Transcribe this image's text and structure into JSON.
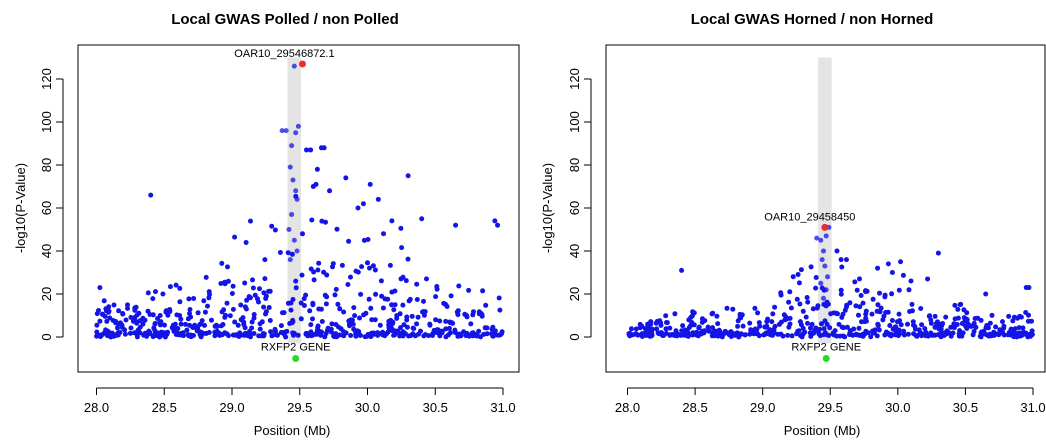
{
  "chart_data": [
    {
      "type": "scatter",
      "title": "Local GWAS Polled / non Polled",
      "xlabel": "Position (Mb)",
      "ylabel": "-log10(P-Value)",
      "xlim": [
        27.95,
        31.05
      ],
      "ylim": [
        -14,
        133
      ],
      "x_ticks": [
        28.0,
        28.5,
        29.0,
        29.5,
        30.0,
        30.5,
        31.0
      ],
      "x_tick_labels": [
        "28.0",
        "28.5",
        "29.0",
        "29.5",
        "30.0",
        "30.5",
        "31.0"
      ],
      "y_ticks": [
        0,
        20,
        40,
        60,
        80,
        100,
        120
      ],
      "y_tick_labels": [
        "0",
        "20",
        "40",
        "60",
        "80",
        "100",
        "120"
      ],
      "grid": false,
      "highlight_region": {
        "x": [
          29.41,
          29.51
        ],
        "y": [
          -3,
          130
        ]
      },
      "point_color": "#1414e6",
      "top_snp": {
        "label": "OAR10_29546872.1",
        "x": 29.52,
        "y": 127,
        "color": "#ee2b2b"
      },
      "gene": {
        "label": "RXFP2 GENE",
        "x": 29.47,
        "y": -10,
        "color": "#22dd22"
      },
      "points_seed": 7,
      "points_count": 620,
      "highlighted_points": [
        {
          "x": 29.37,
          "y": 96
        },
        {
          "x": 29.4,
          "y": 96
        },
        {
          "x": 29.46,
          "y": 126
        },
        {
          "x": 29.47,
          "y": 95
        },
        {
          "x": 29.49,
          "y": 98
        },
        {
          "x": 29.44,
          "y": 89
        },
        {
          "x": 29.43,
          "y": 79
        },
        {
          "x": 29.45,
          "y": 73
        },
        {
          "x": 29.48,
          "y": 64
        },
        {
          "x": 29.47,
          "y": 68
        },
        {
          "x": 29.44,
          "y": 57
        },
        {
          "x": 29.42,
          "y": 50
        },
        {
          "x": 29.46,
          "y": 45
        },
        {
          "x": 29.48,
          "y": 40
        },
        {
          "x": 29.43,
          "y": 36
        }
      ],
      "notable_points": [
        {
          "x": 28.4,
          "y": 66
        },
        {
          "x": 29.55,
          "y": 87
        },
        {
          "x": 29.58,
          "y": 87
        },
        {
          "x": 29.66,
          "y": 88
        },
        {
          "x": 29.68,
          "y": 88
        },
        {
          "x": 29.63,
          "y": 78
        },
        {
          "x": 29.6,
          "y": 70
        },
        {
          "x": 29.62,
          "y": 71
        },
        {
          "x": 29.72,
          "y": 68
        },
        {
          "x": 29.84,
          "y": 74
        },
        {
          "x": 30.02,
          "y": 71
        },
        {
          "x": 30.3,
          "y": 75
        },
        {
          "x": 29.97,
          "y": 62
        },
        {
          "x": 30.08,
          "y": 64
        },
        {
          "x": 29.93,
          "y": 60
        },
        {
          "x": 30.4,
          "y": 55
        },
        {
          "x": 30.94,
          "y": 54
        },
        {
          "x": 30.96,
          "y": 52
        },
        {
          "x": 30.65,
          "y": 52
        },
        {
          "x": 30.18,
          "y": 54
        }
      ]
    },
    {
      "type": "scatter",
      "title": "Local GWAS Horned / non Horned",
      "xlabel": "Position (Mb)",
      "ylabel": "-log10(P-Value)",
      "xlim": [
        27.95,
        31.05
      ],
      "ylim": [
        -14,
        133
      ],
      "x_ticks": [
        28.0,
        28.5,
        29.0,
        29.5,
        30.0,
        30.5,
        31.0
      ],
      "x_tick_labels": [
        "28.0",
        "28.5",
        "29.0",
        "29.5",
        "30.0",
        "30.5",
        "31.0"
      ],
      "y_ticks": [
        0,
        20,
        40,
        60,
        80,
        100,
        120
      ],
      "y_tick_labels": [
        "0",
        "20",
        "40",
        "60",
        "80",
        "100",
        "120"
      ],
      "grid": false,
      "highlight_region": {
        "x": [
          29.41,
          29.51
        ],
        "y": [
          -3,
          130
        ]
      },
      "point_color": "#1414e6",
      "top_snp": {
        "label": "OAR10_29458450",
        "x": 29.46,
        "y": 51,
        "color": "#ee2b2b"
      },
      "gene": {
        "label": "RXFP2 GENE",
        "x": 29.47,
        "y": -10,
        "color": "#22dd22"
      },
      "points_seed": 13,
      "points_count": 560,
      "highlighted_points": [
        {
          "x": 29.4,
          "y": 46
        },
        {
          "x": 29.43,
          "y": 45
        },
        {
          "x": 29.49,
          "y": 51
        },
        {
          "x": 29.47,
          "y": 47
        },
        {
          "x": 29.45,
          "y": 40
        },
        {
          "x": 29.44,
          "y": 36
        },
        {
          "x": 29.46,
          "y": 33
        },
        {
          "x": 29.48,
          "y": 28
        },
        {
          "x": 29.43,
          "y": 25
        },
        {
          "x": 29.47,
          "y": 22
        },
        {
          "x": 29.45,
          "y": 18
        }
      ],
      "notable_points": [
        {
          "x": 28.4,
          "y": 31
        },
        {
          "x": 29.58,
          "y": 36
        },
        {
          "x": 29.62,
          "y": 36
        },
        {
          "x": 29.55,
          "y": 40
        },
        {
          "x": 30.3,
          "y": 39
        },
        {
          "x": 29.93,
          "y": 34
        },
        {
          "x": 30.02,
          "y": 35
        },
        {
          "x": 29.85,
          "y": 32
        },
        {
          "x": 30.95,
          "y": 23
        },
        {
          "x": 30.97,
          "y": 23
        },
        {
          "x": 30.22,
          "y": 27
        },
        {
          "x": 29.96,
          "y": 30
        },
        {
          "x": 30.65,
          "y": 20
        }
      ]
    }
  ]
}
